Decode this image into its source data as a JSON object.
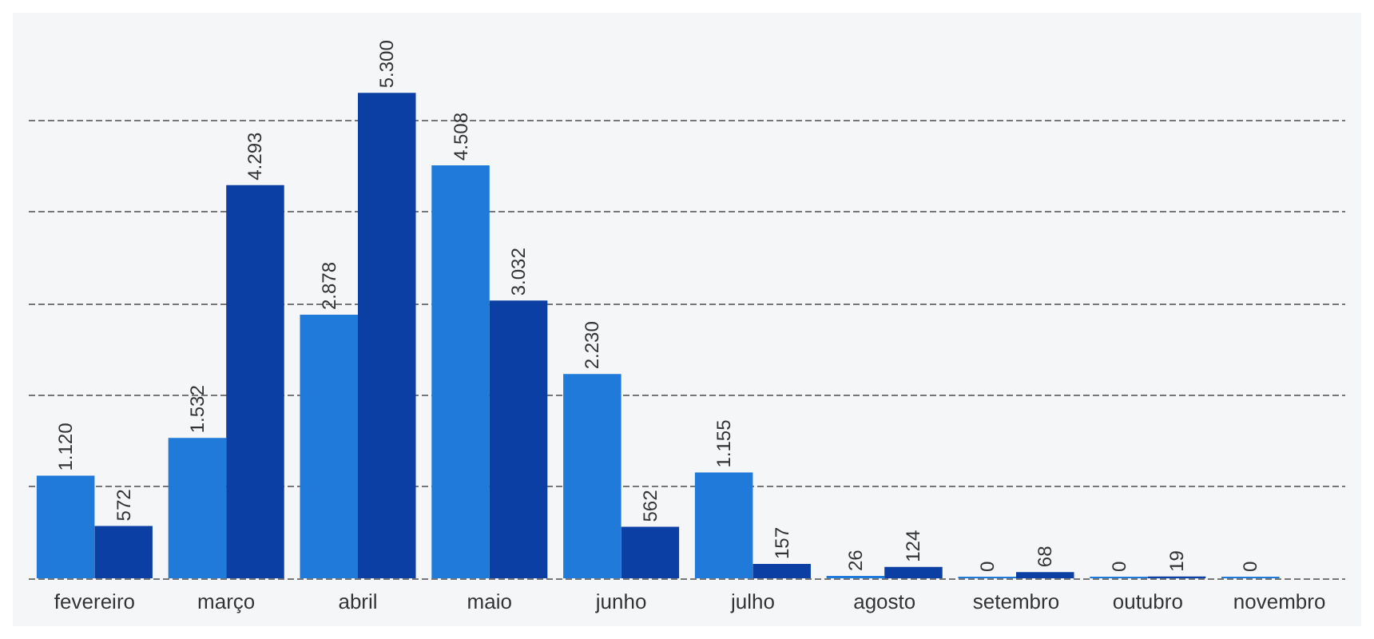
{
  "chart_data": {
    "type": "bar",
    "categories": [
      "fevereiro",
      "março",
      "abril",
      "maio",
      "junho",
      "julho",
      "agosto",
      "setembro",
      "outubro",
      "novembro"
    ],
    "series": [
      {
        "color": "#1f7ad9",
        "values": [
          1120,
          1532,
          2878,
          4508,
          2230,
          1155,
          26,
          0,
          0,
          0
        ],
        "value_labels": [
          "1.120",
          "1.532",
          "2.878",
          "4.508",
          "2.230",
          "1.155",
          "26",
          "0",
          "0",
          "0"
        ]
      },
      {
        "color": "#0b3fa3",
        "values": [
          572,
          4293,
          5300,
          3032,
          562,
          157,
          124,
          68,
          19,
          null
        ],
        "value_labels": [
          "572",
          "4.293",
          "5.300",
          "3.032",
          "562",
          "157",
          "124",
          "68",
          "19",
          null
        ]
      }
    ],
    "yticks": [
      {
        "value": 0,
        "label": null
      },
      {
        "value": 1000,
        "label": null
      },
      {
        "value": 2000,
        "label": null
      },
      {
        "value": 3000,
        "label": null
      },
      {
        "value": 4000,
        "label": null
      },
      {
        "value": 5000,
        "label": null
      }
    ],
    "tick_labels": "x",
    "grid": "y"
  }
}
